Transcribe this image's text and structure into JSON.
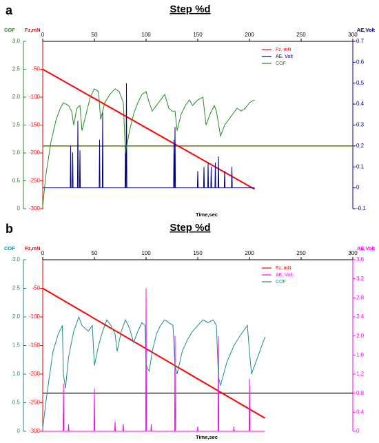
{
  "chart_data": [
    {
      "type": "line",
      "panel_label": "a",
      "title": "Step %d",
      "xlabel": "Time,sec",
      "xlim": [
        0,
        300
      ],
      "xticks": [
        0,
        50,
        100,
        150,
        200,
        250,
        300
      ],
      "ylabel": "Fz,mN",
      "ycolor": "#ff0000",
      "ylim": [
        -300,
        0
      ],
      "yticks": [
        -50,
        -100,
        -150,
        -200,
        -250,
        -300
      ],
      "y2label": "AE,Volt",
      "y2color": "#000080",
      "y2lim": [
        -0.1,
        0.7
      ],
      "y2ticks": [
        -0.1,
        0,
        0.1,
        0.2,
        0.3,
        0.4,
        0.5,
        0.6,
        0.7
      ],
      "y3label": "COF",
      "y3color": "#228b22",
      "y3lim": [
        0,
        3
      ],
      "y3ticks": [
        0,
        0.5,
        {
          "value": 1,
          "label": "1.0"
        },
        1.5,
        {
          "value": 2,
          "label": "2.0"
        },
        2.5,
        {
          "value": 3,
          "label": "3.0"
        }
      ],
      "reference_lines": [
        {
          "axis": "y2",
          "value": 0.2,
          "color": "#6b6b00"
        }
      ],
      "series": [
        {
          "name": "Fz. mN",
          "color": "#ff0000",
          "axis": "y",
          "x": [
            0,
            205
          ],
          "values": [
            -50,
            -265
          ]
        },
        {
          "name": "AE. Volt",
          "color": "#000080",
          "axis": "y2",
          "x": [
            0,
            26.6,
            27,
            27.4,
            28.6,
            29,
            29.4,
            33.6,
            34,
            34.4,
            35.6,
            36,
            36.4,
            54.6,
            55,
            55.4,
            57.6,
            58,
            58.4,
            79.6,
            80,
            80.4,
            80.6,
            81,
            81.4,
            126.6,
            127,
            127.4,
            127.6,
            128,
            128.4,
            149.6,
            150,
            150.4,
            155.6,
            156,
            156.4,
            159.6,
            160,
            160.4,
            162.6,
            163,
            163.4,
            166.6,
            167,
            167.4,
            169.6,
            170,
            170.4,
            175.6,
            176,
            176.4,
            182.6,
            183,
            183.4,
            205
          ],
          "values": [
            0,
            0,
            0.2,
            0,
            0,
            0.17,
            0,
            0,
            0.32,
            0,
            0,
            0.18,
            0,
            0,
            0.23,
            0,
            0,
            0.36,
            0,
            0,
            0.2,
            0,
            0,
            0.5,
            0,
            0,
            0.23,
            0,
            0,
            0.29,
            0,
            0,
            0.08,
            0,
            0,
            0.1,
            0,
            0,
            0.12,
            0,
            0,
            0.1,
            0,
            0,
            0.12,
            0,
            0,
            0.15,
            0,
            0,
            0.08,
            0,
            0,
            0.1,
            0,
            0
          ]
        },
        {
          "name": "COF",
          "color": "#228b22",
          "axis": "y3",
          "x": [
            0,
            3,
            8,
            13,
            17,
            20,
            25,
            28,
            30,
            33,
            36,
            38,
            42,
            46,
            50,
            54,
            56,
            60,
            65,
            70,
            74,
            78,
            80,
            84,
            88,
            92,
            96,
            100,
            103,
            106,
            110,
            114,
            118,
            122,
            125,
            128,
            130,
            134,
            138,
            142,
            145,
            150,
            155,
            158,
            162,
            166,
            168,
            172,
            176,
            182,
            188,
            192,
            196,
            200,
            205
          ],
          "values": [
            0.05,
            0.6,
            1.2,
            1.6,
            1.8,
            1.9,
            1.85,
            1.75,
            1.5,
            1.8,
            1.85,
            1.4,
            1.7,
            2.0,
            2.15,
            2.1,
            1.6,
            1.9,
            2.05,
            2.15,
            2.1,
            1.9,
            1.0,
            1.4,
            1.7,
            1.9,
            2.05,
            2.1,
            1.9,
            1.75,
            1.85,
            1.95,
            2.05,
            1.8,
            1.75,
            1.75,
            1.4,
            1.7,
            1.85,
            1.95,
            1.85,
            1.95,
            2.0,
            1.5,
            1.7,
            1.85,
            1.75,
            1.3,
            1.5,
            1.65,
            1.8,
            1.75,
            1.8,
            1.9,
            1.95
          ]
        }
      ]
    },
    {
      "type": "line",
      "panel_label": "b",
      "title": "Step %d",
      "xlabel": "Time,sec",
      "xlim": [
        0,
        300
      ],
      "xticks": [
        0,
        50,
        100,
        150,
        200,
        250,
        300
      ],
      "ylabel": "Fz,mN",
      "ycolor": "#ff0000",
      "ylim": [
        -300,
        0
      ],
      "yticks": [
        -50,
        -100,
        -150,
        -200,
        -250,
        -300
      ],
      "y2label": "AE,Volt",
      "y2color": "#ff00ff",
      "y2lim": [
        0,
        3.6
      ],
      "y2ticks": [
        0,
        0.4,
        0.8,
        1.2,
        1.6,
        {
          "value": 2,
          "label": "2.0"
        },
        2.4,
        2.8,
        3.2,
        3.6
      ],
      "y3label": "COF",
      "y3color": "#1a8a8a",
      "y3lim": [
        0,
        3
      ],
      "y3ticks": [
        0,
        0.5,
        {
          "value": 1,
          "label": "1.0"
        },
        1.5,
        {
          "value": 2,
          "label": "2.0"
        },
        2.5,
        {
          "value": 3,
          "label": "3.0"
        }
      ],
      "reference_lines": [
        {
          "axis": "y2",
          "value": 0.8,
          "color": "#333333"
        }
      ],
      "series": [
        {
          "name": "Fz. mN",
          "color": "#ff0000",
          "axis": "y",
          "x": [
            0,
            215
          ],
          "values": [
            -50,
            -277
          ]
        },
        {
          "name": "AE. Volt",
          "color": "#ff00ff",
          "axis": "y2",
          "x": [
            0,
            19.6,
            20,
            20.4,
            24.6,
            25,
            25.4,
            49.6,
            50,
            50.4,
            69.6,
            70,
            70.4,
            77.6,
            78,
            78.4,
            99.6,
            100,
            100.4,
            104.6,
            105,
            105.4,
            127.6,
            128,
            128.4,
            149.6,
            150,
            150.4,
            169.6,
            170,
            170.4,
            184.6,
            185,
            185.4,
            199.6,
            200,
            200.4,
            215
          ],
          "values": [
            0,
            0,
            1.0,
            0,
            0,
            0.15,
            0,
            0,
            0.9,
            0,
            0,
            0.2,
            0,
            0,
            0.15,
            0,
            0,
            3.0,
            0,
            0,
            0.15,
            0,
            0,
            2.0,
            0,
            0,
            0.1,
            0,
            0,
            2.0,
            0,
            0,
            0.1,
            0,
            0,
            1.1,
            0,
            0
          ]
        },
        {
          "name": "COF",
          "color": "#1a8a8a",
          "axis": "y3",
          "x": [
            0,
            3,
            6,
            10,
            15,
            19,
            20,
            22,
            25,
            30,
            35,
            38,
            44,
            48,
            50,
            54,
            58,
            62,
            66,
            70,
            72,
            76,
            80,
            84,
            88,
            92,
            96,
            99,
            100,
            103,
            106,
            110,
            114,
            118,
            122,
            126,
            128,
            130,
            135,
            140,
            145,
            150,
            155,
            160,
            165,
            168,
            170,
            172,
            178,
            185,
            192,
            198,
            200,
            202,
            205,
            210,
            215
          ],
          "values": [
            0.05,
            0.5,
            0.9,
            1.4,
            1.7,
            1.85,
            1.0,
            0.75,
            1.3,
            1.75,
            2.0,
            1.85,
            1.75,
            1.85,
            1.15,
            1.5,
            1.75,
            1.95,
            1.85,
            1.7,
            1.4,
            1.75,
            1.95,
            1.8,
            1.55,
            1.75,
            1.9,
            1.85,
            1.15,
            1.05,
            1.4,
            1.7,
            1.85,
            1.95,
            1.9,
            1.85,
            1.15,
            1.0,
            1.4,
            1.6,
            1.75,
            1.85,
            1.95,
            1.9,
            1.95,
            1.85,
            0.95,
            0.8,
            1.2,
            1.5,
            1.7,
            1.85,
            1.4,
            1.0,
            1.15,
            1.4,
            1.65
          ]
        }
      ]
    }
  ]
}
